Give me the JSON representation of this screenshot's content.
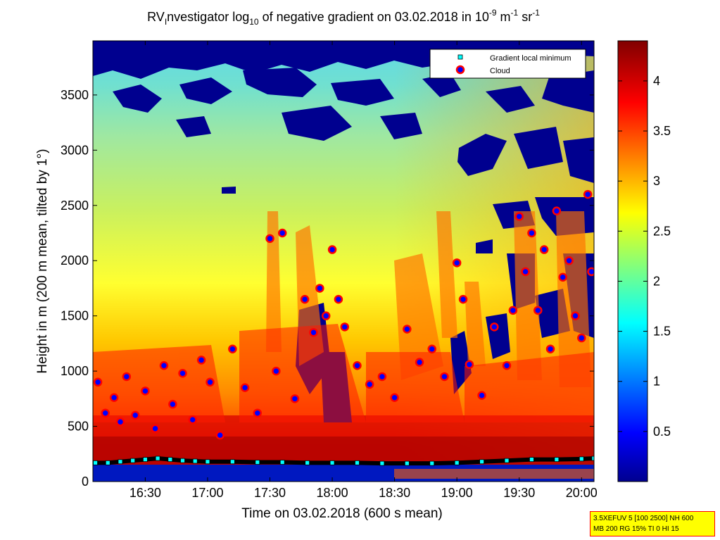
{
  "chart_data": {
    "type": "heatmap",
    "title": {
      "part1": "RV",
      "part1_sub": "I",
      "part2": "nvestigator log",
      "part2_sub": "10",
      "part3": " of negative gradient on 03.02.2018 in 10",
      "sup1": "-9",
      "part4": " m",
      "sup2": "-1",
      "part5": " sr",
      "sup3": "-1"
    },
    "xlabel": "Time on 03.02.2018 (600 s mean)",
    "ylabel": "Height in m (200 m mean, tilted by 1°)",
    "x_ticks": [
      "16:30",
      "17:00",
      "17:30",
      "18:00",
      "18:30",
      "19:00",
      "19:30",
      "20:00"
    ],
    "x_tick_hours": [
      16.5,
      17.0,
      17.5,
      18.0,
      18.5,
      19.0,
      19.5,
      20.0
    ],
    "xlim_hours": [
      16.08,
      20.1
    ],
    "y_ticks": [
      0,
      500,
      1000,
      1500,
      2000,
      2500,
      3000,
      3500
    ],
    "ylim": [
      0,
      3990
    ],
    "colorbar": {
      "ticks": [
        0.5,
        1,
        1.5,
        2,
        2.5,
        3,
        3.5,
        4
      ],
      "tick_labels": [
        "0.5",
        "1",
        "1.5",
        "2",
        "2.5",
        "3",
        "3.5",
        "4"
      ],
      "range": [
        0,
        4.4
      ],
      "colormap": "jet"
    },
    "legend": {
      "position": "top-right",
      "entries": [
        {
          "name": "Gradient local minimum",
          "color": "#00ffff",
          "marker": "square"
        },
        {
          "name": "Cloud",
          "color": "#ff0000",
          "marker": "circle"
        }
      ]
    },
    "gradient_minimum_series": {
      "x_hours": [
        16.1,
        16.2,
        16.3,
        16.4,
        16.5,
        16.6,
        16.7,
        16.8,
        16.9,
        17.0,
        17.2,
        17.4,
        17.6,
        17.8,
        18.0,
        18.2,
        18.4,
        18.6,
        18.8,
        19.0,
        19.2,
        19.4,
        19.6,
        19.8,
        20.0,
        20.1
      ],
      "heights_m": [
        170,
        170,
        180,
        190,
        200,
        210,
        200,
        190,
        185,
        180,
        180,
        175,
        175,
        170,
        170,
        170,
        165,
        165,
        165,
        170,
        180,
        190,
        200,
        200,
        205,
        210
      ]
    },
    "cloud_series": {
      "x_hours": [
        16.12,
        16.18,
        16.25,
        16.3,
        16.35,
        16.42,
        16.5,
        16.58,
        16.65,
        16.72,
        16.8,
        16.88,
        16.95,
        17.02,
        17.1,
        17.2,
        17.3,
        17.4,
        17.5,
        17.55,
        17.6,
        17.7,
        17.78,
        17.85,
        17.9,
        17.95,
        18.0,
        18.05,
        18.1,
        18.2,
        18.3,
        18.4,
        18.5,
        18.6,
        18.7,
        18.8,
        18.9,
        19.0,
        19.05,
        19.1,
        19.2,
        19.3,
        19.4,
        19.45,
        19.5,
        19.55,
        19.6,
        19.65,
        19.7,
        19.75,
        19.8,
        19.85,
        19.9,
        19.95,
        20.0,
        20.05,
        20.08
      ],
      "heights_m": [
        900,
        620,
        760,
        540,
        950,
        600,
        820,
        480,
        1050,
        700,
        980,
        560,
        1100,
        900,
        420,
        1200,
        850,
        620,
        2200,
        1000,
        2250,
        750,
        1650,
        1350,
        1750,
        1500,
        2100,
        1650,
        1400,
        1050,
        880,
        950,
        760,
        1380,
        1080,
        1200,
        950,
        1980,
        1650,
        1060,
        780,
        1400,
        1050,
        1550,
        2400,
        1900,
        2250,
        1550,
        2100,
        1200,
        2450,
        1850,
        2000,
        1500,
        1300,
        2600,
        1900
      ]
    }
  },
  "settings_box": {
    "line1": "3.5XEFUV 5 [100 2500] NH 600",
    "line2": "MB 200 RG 15% TI 0 HI 15"
  }
}
